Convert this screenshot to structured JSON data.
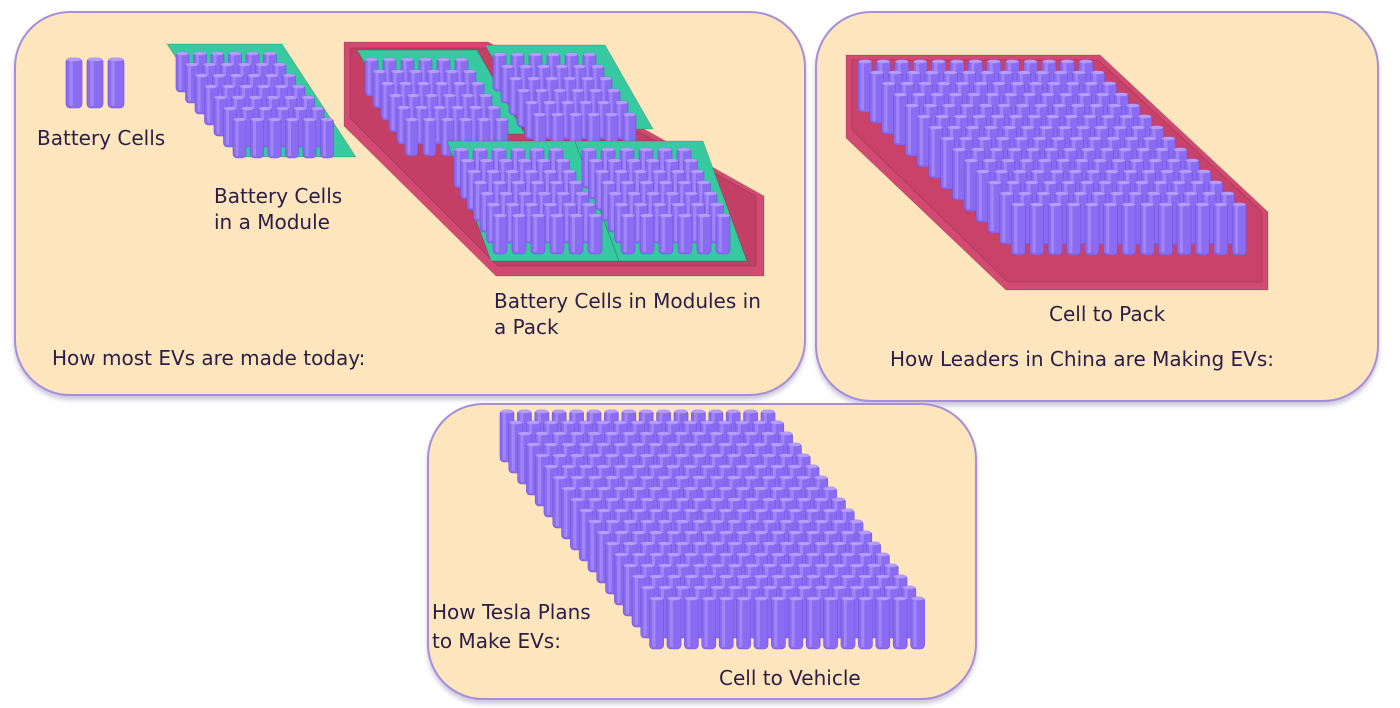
{
  "colors": {
    "panel_background": "#fde5bd",
    "panel_border": "#a58fd8",
    "cell": "#8a6cf2",
    "cell_highlight": "#b69cff",
    "module": "#37c9a0",
    "pack": "#d24a72",
    "text": "#2c1d47"
  },
  "panels": {
    "today": {
      "heading": "How most EVs are made today:",
      "cells_label": "Battery Cells",
      "module_label_line1": "Battery Cells",
      "module_label_line2": "in a Module",
      "pack_label_line1": "Battery Cells in Modules in",
      "pack_label_line2": "a Pack"
    },
    "china": {
      "heading": "How Leaders in China are Making EVs:",
      "pack_label": "Cell to Pack"
    },
    "tesla": {
      "heading_line1": "How Tesla Plans",
      "heading_line2": "to Make EVs:",
      "vehicle_label": "Cell to Vehicle"
    }
  }
}
